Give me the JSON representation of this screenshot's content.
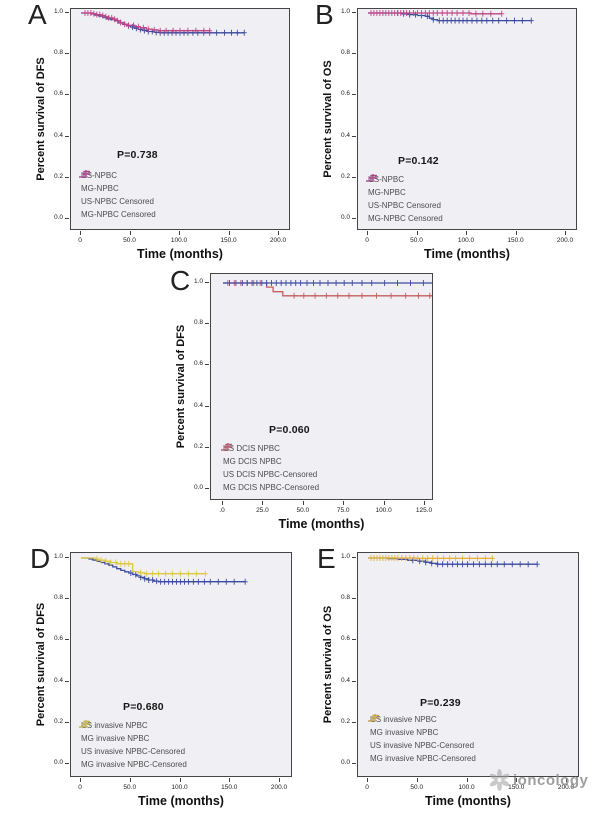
{
  "watermark": {
    "icon": "flower-logo-icon",
    "text": "ioncology"
  },
  "styles": {
    "plot_background": "#f0eff4",
    "plot_border": "#454545",
    "us_blue": "#3c4b9e",
    "mg_magenta": "#bc4585",
    "mg_red": "#c55f5f",
    "mg_yellow": "#ddc83f",
    "mg_gold": "#e0b23c"
  },
  "chart_data": [
    {
      "panel": "A",
      "type": "line",
      "subtype": "kaplan-meier-step",
      "ylabel": "Percent survival of DFS",
      "xlabel": "Time (months)",
      "p_label": "P=0.738",
      "xlim": [
        0,
        200
      ],
      "ylim": [
        0,
        1.03
      ],
      "grid": false,
      "legend_position": "lower-left",
      "xticks": [
        "0",
        "50.0",
        "100.0",
        "150.0",
        "200.0"
      ],
      "yticks": [
        "0.0",
        "0.2",
        "0.4",
        "0.6",
        "0.8",
        "1.0"
      ],
      "legend": [
        {
          "label": "US-NPBC",
          "symbol": "step",
          "color": "#3c4b9e"
        },
        {
          "label": "MG-NPBC",
          "symbol": "step",
          "color": "#bc4585"
        },
        {
          "label": "US-NPBC Censored",
          "symbol": "plus",
          "color": "#3c4b9e"
        },
        {
          "label": "MG-NPBC Censored",
          "symbol": "plus",
          "color": "#bc4585"
        }
      ],
      "series": [
        {
          "name": "US-NPBC",
          "color": "#3c4b9e",
          "points": [
            [
              0,
              1.0
            ],
            [
              6,
              1.0
            ],
            [
              10,
              0.995
            ],
            [
              14,
              0.99
            ],
            [
              18,
              0.985
            ],
            [
              22,
              0.978
            ],
            [
              26,
              0.972
            ],
            [
              30,
              0.968
            ],
            [
              34,
              0.962
            ],
            [
              38,
              0.952
            ],
            [
              42,
              0.945
            ],
            [
              46,
              0.938
            ],
            [
              50,
              0.932
            ],
            [
              54,
              0.926
            ],
            [
              58,
              0.92
            ],
            [
              62,
              0.915
            ],
            [
              68,
              0.91
            ],
            [
              74,
              0.906
            ],
            [
              80,
              0.904
            ],
            [
              165,
              0.904
            ]
          ],
          "censor_x": [
            48,
            52,
            56,
            60,
            64,
            68,
            72,
            76,
            80,
            84,
            88,
            92,
            96,
            100,
            104,
            108,
            113,
            118,
            124,
            130,
            137,
            145,
            152,
            158,
            165
          ]
        },
        {
          "name": "MG-NPBC",
          "color": "#bc4585",
          "points": [
            [
              0,
              1.0
            ],
            [
              8,
              1.0
            ],
            [
              12,
              0.996
            ],
            [
              16,
              0.992
            ],
            [
              20,
              0.988
            ],
            [
              24,
              0.982
            ],
            [
              28,
              0.976
            ],
            [
              32,
              0.97
            ],
            [
              36,
              0.962
            ],
            [
              40,
              0.954
            ],
            [
              44,
              0.946
            ],
            [
              48,
              0.94
            ],
            [
              54,
              0.934
            ],
            [
              60,
              0.928
            ],
            [
              66,
              0.922
            ],
            [
              72,
              0.918
            ],
            [
              78,
              0.914
            ],
            [
              130,
              0.914
            ]
          ],
          "censor_x": [
            4,
            7,
            10,
            13,
            16,
            19,
            22,
            25,
            28,
            31,
            34,
            37,
            40,
            44,
            48,
            53,
            58,
            63,
            68,
            74,
            80,
            86,
            93,
            100,
            108,
            116,
            124,
            130
          ]
        }
      ]
    },
    {
      "panel": "B",
      "type": "line",
      "subtype": "kaplan-meier-step",
      "ylabel": "Percent survival of OS",
      "xlabel": "Time (months)",
      "p_label": "P=0.142",
      "xlim": [
        0,
        200
      ],
      "ylim": [
        0,
        1.03
      ],
      "grid": false,
      "legend_position": "lower-left",
      "xticks": [
        "0",
        "50.0",
        "100.0",
        "150.0",
        "200.0"
      ],
      "yticks": [
        "0.0",
        "0.2",
        "0.4",
        "0.6",
        "0.8",
        "1.0"
      ],
      "legend": [
        {
          "label": "US-NPBC",
          "symbol": "step",
          "color": "#3c4b9e"
        },
        {
          "label": "MG-NPBC",
          "symbol": "step",
          "color": "#bc4585"
        },
        {
          "label": "US-NPBC Censored",
          "symbol": "plus",
          "color": "#3c4b9e"
        },
        {
          "label": "MG-NPBC Censored",
          "symbol": "plus",
          "color": "#bc4585"
        }
      ],
      "series": [
        {
          "name": "US-NPBC",
          "color": "#3c4b9e",
          "points": [
            [
              0,
              1.0
            ],
            [
              28,
              1.0
            ],
            [
              34,
              0.996
            ],
            [
              42,
              0.992
            ],
            [
              50,
              0.988
            ],
            [
              58,
              0.984
            ],
            [
              62,
              0.975
            ],
            [
              66,
              0.968
            ],
            [
              70,
              0.963
            ],
            [
              165,
              0.963
            ]
          ],
          "censor_x": [
            30,
            36,
            42,
            48,
            54,
            60,
            66,
            72,
            76,
            80,
            84,
            88,
            92,
            96,
            100,
            105,
            110,
            115,
            120,
            126,
            132,
            140,
            148,
            156,
            165
          ]
        },
        {
          "name": "MG-NPBC",
          "color": "#bc4585",
          "points": [
            [
              0,
              1.0
            ],
            [
              100,
              1.0
            ],
            [
              104,
              0.996
            ],
            [
              135,
              0.996
            ]
          ],
          "censor_x": [
            3,
            6,
            9,
            12,
            15,
            18,
            21,
            24,
            27,
            30,
            33,
            36,
            39,
            42,
            46,
            50,
            54,
            58,
            62,
            66,
            70,
            75,
            80,
            85,
            90,
            96,
            102,
            109,
            116,
            124,
            135
          ]
        }
      ]
    },
    {
      "panel": "C",
      "type": "line",
      "subtype": "kaplan-meier-step",
      "ylabel": "Percent survival of DFS",
      "xlabel": "Time (months)",
      "p_label": "P=0.060",
      "xlim": [
        0,
        125
      ],
      "ylim": [
        0,
        1.03
      ],
      "grid": false,
      "legend_position": "lower-left",
      "xticks": [
        ".0",
        "25.0",
        "50.0",
        "75.0",
        "100.0",
        "125.0"
      ],
      "yticks": [
        "0.0",
        "0.2",
        "0.4",
        "0.6",
        "0.8",
        "1.0"
      ],
      "legend": [
        {
          "label": "US DCIS NPBC",
          "symbol": "step",
          "color": "#3c4b9e"
        },
        {
          "label": "MG DCIS NPBC",
          "symbol": "step",
          "color": "#c55f5f"
        },
        {
          "label": "US DCIS NPBC-Censored",
          "symbol": "plus",
          "color": "#3c4b9e"
        },
        {
          "label": "MG DCIS NPBC-Censored",
          "symbol": "plus",
          "color": "#c55f5f"
        }
      ],
      "series": [
        {
          "name": "MG DCIS NPBC",
          "color": "#c55f5f",
          "points": [
            [
              0,
              1.0
            ],
            [
              27,
              0.98
            ],
            [
              31,
              0.958
            ],
            [
              37,
              0.938
            ],
            [
              133,
              0.938
            ]
          ],
          "censor_x": [
            3,
            7,
            11,
            15,
            19,
            23,
            44,
            50,
            57,
            64,
            71,
            78,
            86,
            95,
            104,
            113,
            121,
            128,
            133
          ]
        },
        {
          "name": "US DCIS NPBC",
          "color": "#3c4b9e",
          "points": [
            [
              0,
              1.0
            ],
            [
              133,
              1.0
            ]
          ],
          "censor_x": [
            4,
            8,
            12,
            15,
            18,
            21,
            24,
            27,
            30,
            33,
            36,
            39,
            42,
            45,
            48,
            52,
            56,
            60,
            65,
            70,
            75,
            80,
            86,
            92,
            100,
            108,
            116,
            124,
            133
          ]
        }
      ]
    },
    {
      "panel": "D",
      "type": "line",
      "subtype": "kaplan-meier-step",
      "ylabel": "Percent survival of DFS",
      "xlabel": "Time (months)",
      "p_label": "P=0.680",
      "xlim": [
        0,
        200
      ],
      "ylim": [
        0,
        1.03
      ],
      "grid": false,
      "legend_position": "lower-left",
      "xticks": [
        "0",
        "50.0",
        "100.0",
        "150.0",
        "200.0"
      ],
      "yticks": [
        "0.0",
        "0.2",
        "0.4",
        "0.6",
        "0.8",
        "1.0"
      ],
      "legend": [
        {
          "label": "US invasive NPBC",
          "symbol": "step",
          "color": "#3c4b9e"
        },
        {
          "label": "MG invasive NPBC",
          "symbol": "step",
          "color": "#ddc83f"
        },
        {
          "label": "US invasive NPBC-Censored",
          "symbol": "plus",
          "color": "#3c4b9e"
        },
        {
          "label": "MG invasive NPBC-Censored",
          "symbol": "plus",
          "color": "#ddc83f"
        }
      ],
      "series": [
        {
          "name": "US invasive NPBC",
          "color": "#3c4b9e",
          "points": [
            [
              0,
              1.0
            ],
            [
              8,
              0.995
            ],
            [
              12,
              0.99
            ],
            [
              16,
              0.984
            ],
            [
              20,
              0.978
            ],
            [
              24,
              0.972
            ],
            [
              28,
              0.965
            ],
            [
              32,
              0.957
            ],
            [
              36,
              0.948
            ],
            [
              40,
              0.94
            ],
            [
              44,
              0.933
            ],
            [
              48,
              0.927
            ],
            [
              52,
              0.92
            ],
            [
              56,
              0.913
            ],
            [
              60,
              0.906
            ],
            [
              64,
              0.899
            ],
            [
              68,
              0.893
            ],
            [
              73,
              0.888
            ],
            [
              78,
              0.885
            ],
            [
              165,
              0.885
            ]
          ],
          "censor_x": [
            50,
            55,
            60,
            64,
            68,
            72,
            76,
            80,
            84,
            88,
            92,
            96,
            100,
            104,
            108,
            113,
            118,
            124,
            130,
            138,
            146,
            154,
            165
          ]
        },
        {
          "name": "MG invasive NPBC",
          "color": "#ddc83f",
          "points": [
            [
              0,
              1.0
            ],
            [
              14,
              0.995
            ],
            [
              18,
              0.99
            ],
            [
              24,
              0.984
            ],
            [
              30,
              0.978
            ],
            [
              36,
              0.972
            ],
            [
              52,
              0.934
            ],
            [
              58,
              0.928
            ],
            [
              64,
              0.924
            ],
            [
              125,
              0.924
            ]
          ],
          "censor_x": [
            16,
            20,
            25,
            30,
            35,
            40,
            44,
            48,
            60,
            66,
            72,
            78,
            85,
            92,
            100,
            108,
            116,
            125
          ]
        }
      ]
    },
    {
      "panel": "E",
      "type": "line",
      "subtype": "kaplan-meier-step",
      "ylabel": "Percent survival of OS",
      "xlabel": "Time (months)",
      "p_label": "P=0.239",
      "xlim": [
        0,
        200
      ],
      "ylim": [
        0,
        1.03
      ],
      "grid": false,
      "legend_position": "lower-left",
      "xticks": [
        "0",
        "50.0",
        "100.0",
        "150.0",
        "200.0"
      ],
      "yticks": [
        "0.0",
        "0.2",
        "0.4",
        "0.6",
        "0.8",
        "1.0"
      ],
      "legend": [
        {
          "label": "US invasive NPBC",
          "symbol": "step",
          "color": "#3c4b9e"
        },
        {
          "label": "MG invasive NPBC",
          "symbol": "step",
          "color": "#e0b23c"
        },
        {
          "label": "US invasive NPBC-Censored",
          "symbol": "plus",
          "color": "#3c4b9e"
        },
        {
          "label": "MG invasive NPBC-Censored",
          "symbol": "plus",
          "color": "#e0b23c"
        }
      ],
      "series": [
        {
          "name": "US invasive NPBC",
          "color": "#3c4b9e",
          "points": [
            [
              0,
              1.0
            ],
            [
              20,
              0.997
            ],
            [
              30,
              0.993
            ],
            [
              40,
              0.989
            ],
            [
              50,
              0.985
            ],
            [
              58,
              0.979
            ],
            [
              64,
              0.974
            ],
            [
              70,
              0.97
            ],
            [
              170,
              0.97
            ]
          ],
          "censor_x": [
            45,
            52,
            58,
            64,
            70,
            75,
            80,
            85,
            90,
            95,
            100,
            106,
            112,
            118,
            124,
            130,
            137,
            145,
            153,
            161,
            170
          ]
        },
        {
          "name": "MG invasive NPBC",
          "color": "#e0b23c",
          "points": [
            [
              0,
              1.0
            ],
            [
              48,
              0.998
            ],
            [
              125,
              0.998
            ]
          ],
          "censor_x": [
            3,
            6,
            9,
            12,
            15,
            18,
            21,
            24,
            27,
            30,
            34,
            38,
            42,
            46,
            50,
            55,
            60,
            65,
            70,
            76,
            82,
            88,
            95,
            102,
            110,
            118,
            125
          ]
        }
      ]
    }
  ]
}
